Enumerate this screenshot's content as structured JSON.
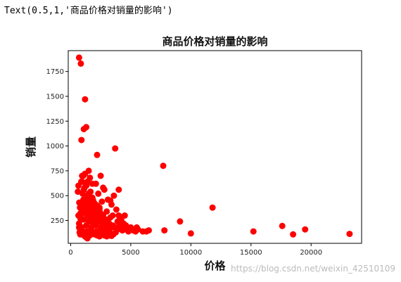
{
  "output_line": "Text(0.5,1,'商品价格对销量的影响')",
  "watermark": "https://blog.csdn.net/weixin_42510109",
  "colors": {
    "point": "#ff0000",
    "axes": "#000000"
  },
  "chart_data": {
    "type": "scatter",
    "title": "商品价格对销量的影响",
    "xlabel": "价格",
    "ylabel": "销量",
    "xlim": [
      -200,
      24200
    ],
    "ylim": [
      20,
      1960
    ],
    "xticks": [
      0,
      5000,
      10000,
      15000,
      20000
    ],
    "yticks": [
      250,
      500,
      750,
      1000,
      1250,
      1500,
      1750
    ],
    "grid": false,
    "series": [
      {
        "x": [
          700,
          850,
          1200,
          900,
          1100,
          1300,
          1500,
          2200,
          3700,
          7700,
          11800,
          9100,
          17600,
          19500,
          18500,
          15200,
          10000,
          7800,
          23200,
          6300,
          600,
          650,
          720,
          780,
          800,
          820,
          880,
          950,
          1000,
          1050,
          1150,
          1250,
          1350,
          1400,
          1450,
          1550,
          1600,
          1650,
          1700,
          1750,
          1800,
          1850,
          1900,
          2000,
          2100,
          2300,
          2400,
          2500,
          2600,
          2700,
          2800,
          2900,
          3000,
          3100,
          3200,
          3300,
          3400,
          3500,
          3600,
          3800,
          3900,
          4000,
          4100,
          4200,
          4300,
          4400,
          4500,
          4600,
          4700,
          4800,
          4900,
          5000,
          5200,
          5400,
          5600,
          6000,
          6500,
          700,
          900,
          1100,
          1300,
          1500,
          1700,
          1900,
          2100,
          2300,
          2500,
          2700,
          2900,
          3100,
          3300,
          3500,
          3700,
          3900,
          4100,
          4300,
          750,
          950,
          1150,
          1350,
          1550,
          1750,
          1950,
          2150,
          2350,
          2550,
          2750,
          2950,
          3150,
          3350,
          3550,
          3750,
          800,
          1000,
          1200,
          1400,
          1600,
          1800,
          2000,
          2200,
          2400,
          2600,
          2800,
          3000,
          3200,
          3400,
          650,
          850,
          1050,
          1250,
          1450,
          1650,
          1850,
          2050,
          2250,
          2450,
          2650,
          2850,
          3050,
          900,
          1100,
          1300,
          1500,
          1700,
          1900,
          2100,
          2300,
          2500,
          2700,
          1000,
          1200,
          1400,
          1600,
          1800,
          2000,
          2200,
          2400,
          1100,
          1300,
          1500,
          1700,
          1900,
          700,
          800,
          900,
          1000,
          1100,
          1200,
          1300,
          1400,
          4000,
          4500,
          5500,
          3300,
          2700,
          1600,
          1800,
          1200,
          950,
          1050
        ],
        "y": [
          1890,
          1830,
          1470,
          1060,
          1170,
          1190,
          750,
          910,
          975,
          800,
          380,
          240,
          195,
          160,
          110,
          140,
          120,
          150,
          115,
          140,
          540,
          600,
          430,
          380,
          320,
          270,
          640,
          700,
          520,
          460,
          580,
          420,
          360,
          640,
          300,
          480,
          260,
          540,
          400,
          360,
          300,
          460,
          250,
          420,
          620,
          520,
          380,
          700,
          440,
          300,
          560,
          260,
          340,
          460,
          220,
          280,
          410,
          300,
          500,
          360,
          240,
          300,
          200,
          260,
          180,
          220,
          160,
          200,
          170,
          140,
          160,
          180,
          150,
          140,
          160,
          140,
          150,
          220,
          180,
          260,
          200,
          240,
          180,
          220,
          200,
          240,
          180,
          220,
          190,
          210,
          170,
          200,
          180,
          160,
          170,
          150,
          130,
          150,
          120,
          140,
          130,
          150,
          120,
          140,
          130,
          150,
          120,
          140,
          130,
          120,
          110,
          130,
          110,
          120,
          100,
          110,
          100,
          120,
          110,
          100,
          90,
          110,
          100,
          90,
          100,
          95,
          300,
          280,
          260,
          320,
          340,
          280,
          300,
          260,
          280,
          240,
          260,
          220,
          240,
          360,
          380,
          340,
          400,
          360,
          320,
          340,
          300,
          320,
          280,
          420,
          460,
          500,
          440,
          480,
          380,
          400,
          360,
          560,
          600,
          520,
          480,
          440,
          180,
          160,
          140,
          120,
          100,
          90,
          80,
          70,
          560,
          300,
          180,
          450,
          580,
          680,
          620,
          720,
          640,
          700
        ]
      }
    ]
  }
}
